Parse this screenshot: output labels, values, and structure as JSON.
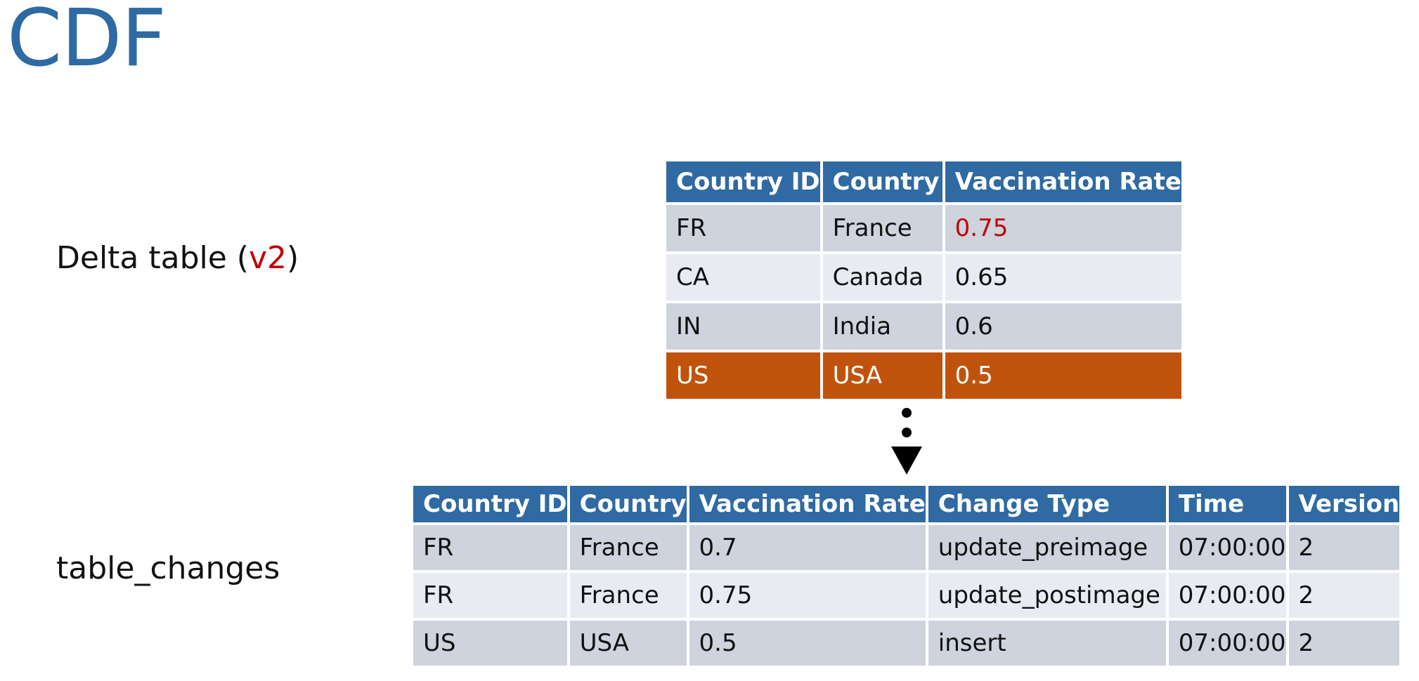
{
  "slide": {
    "title": "CDF"
  },
  "labels": {
    "delta_prefix": "Delta table (",
    "delta_version": "v2",
    "delta_suffix": ")",
    "changes": "table_changes"
  },
  "delta_table": {
    "headers": [
      "Country ID",
      "Country",
      "Vaccination Rate"
    ],
    "rows": [
      [
        "FR",
        "France",
        "0.75"
      ],
      [
        "CA",
        "Canada",
        "0.65"
      ],
      [
        "IN",
        "India",
        "0.6"
      ],
      [
        "US",
        "USA",
        "0.5"
      ]
    ]
  },
  "changes_table": {
    "headers": [
      "Country ID",
      "Country",
      "Vaccination Rate",
      "Change Type",
      "Time",
      "Version"
    ],
    "rows": [
      [
        "FR",
        "France",
        "0.7",
        "update_preimage",
        "07:00:00",
        "2"
      ],
      [
        "FR",
        "France",
        "0.75",
        "update_postimage",
        "07:00:00",
        "2"
      ],
      [
        "US",
        "USA",
        "0.5",
        "insert",
        "07:00:00",
        "2"
      ]
    ]
  },
  "colors": {
    "title": "#2e6aa3",
    "header_bg": "#2f6aa2",
    "row_dark": "#ced3de",
    "row_light": "#e8ebf1",
    "new_row": "#c0530b",
    "changed_value": "#c00000"
  },
  "icons": {
    "flow": "dotted-down-arrow-icon"
  }
}
